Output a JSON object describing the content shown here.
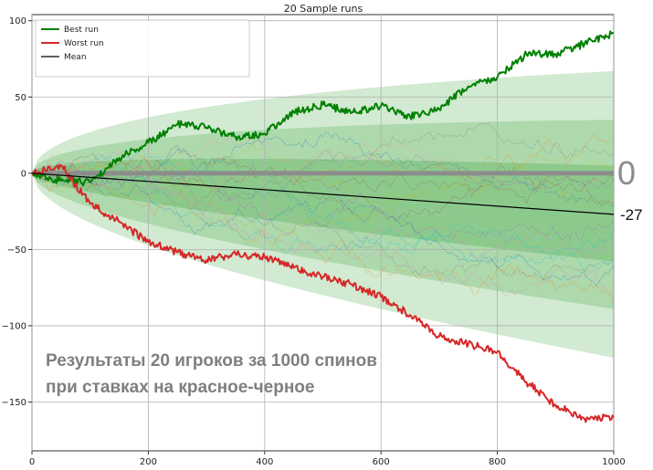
{
  "chart_data": {
    "type": "line",
    "title": "20 Sample runs",
    "xlabel": "",
    "ylabel": "",
    "xlim": [
      0,
      1000
    ],
    "ylim": [
      -182,
      104
    ],
    "xticks": [
      0,
      200,
      400,
      600,
      800,
      1000
    ],
    "yticks": [
      100,
      50,
      0,
      -50,
      -100,
      -150
    ],
    "grid": true,
    "legend_position": "top-left",
    "legend": [
      "Best run",
      "Worst run",
      "Mean"
    ],
    "series": [
      {
        "name": "Best run",
        "color": "#008000",
        "x": [
          0,
          50,
          100,
          150,
          200,
          250,
          300,
          350,
          400,
          450,
          500,
          550,
          600,
          650,
          700,
          750,
          800,
          850,
          900,
          950,
          1000
        ],
        "values": [
          0,
          -5,
          -6,
          10,
          20,
          32,
          30,
          24,
          26,
          40,
          45,
          40,
          44,
          37,
          42,
          57,
          63,
          78,
          78,
          85,
          92
        ]
      },
      {
        "name": "Worst run",
        "color": "#d62728",
        "x": [
          0,
          50,
          100,
          150,
          200,
          250,
          300,
          350,
          400,
          450,
          500,
          550,
          600,
          650,
          700,
          750,
          800,
          850,
          900,
          950,
          1000
        ],
        "values": [
          0,
          5,
          -20,
          -32,
          -45,
          -52,
          -57,
          -53,
          -55,
          -62,
          -68,
          -73,
          -81,
          -93,
          -107,
          -112,
          -117,
          -137,
          -152,
          -161,
          -160
        ]
      },
      {
        "name": "Mean",
        "color": "#000000",
        "x": [
          0,
          1000
        ],
        "values": [
          0,
          -27
        ]
      }
    ],
    "bands": {
      "color": "#2ca02c",
      "mean_end": -27,
      "outer_end": [
        67,
        -121
      ],
      "middle_end": [
        35,
        -89
      ],
      "inner_end": [
        5,
        -58
      ]
    },
    "annotations": {
      "zero_label": "0",
      "mean_end_label": "-27",
      "caption_line1": "Результаты 20 игроков за 1000 спинов",
      "caption_line2": "при ставках на красное-черное"
    }
  }
}
